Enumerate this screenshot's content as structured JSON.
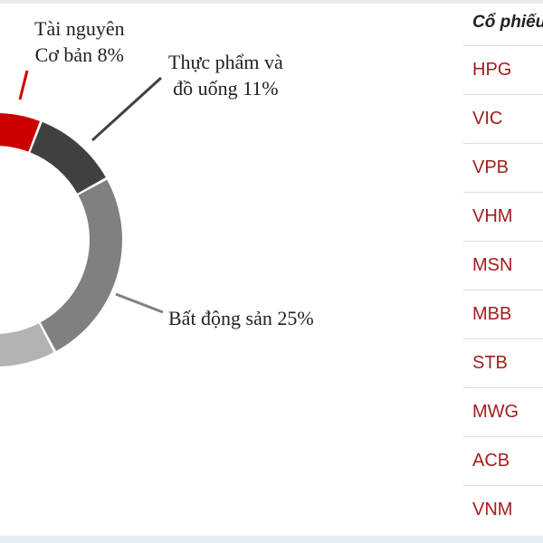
{
  "chart_data": {
    "type": "pie",
    "donut": true,
    "slices": [
      {
        "label": "Tài nguyên Cơ bản",
        "value": 8,
        "color": "#cc0000"
      },
      {
        "label": "Thực phẩm và đồ uống",
        "value": 11,
        "color": "#404040"
      },
      {
        "label": "Bất động sản",
        "value": 25,
        "color": "#808080"
      }
    ]
  },
  "labels": {
    "tai_nguyen_line1": "Tài nguyên",
    "tai_nguyen_line2": "Cơ bản  8%",
    "thuc_pham_line1": "Thực phẩm và",
    "thuc_pham_line2": "đồ uống  11%",
    "bat_dong_san": "Bất động sản 25%"
  },
  "table": {
    "header": "Cổ phiếu",
    "rows": [
      "HPG",
      "VIC",
      "VPB",
      "VHM",
      "MSN",
      "MBB",
      "STB",
      "MWG",
      "ACB",
      "VNM"
    ]
  }
}
